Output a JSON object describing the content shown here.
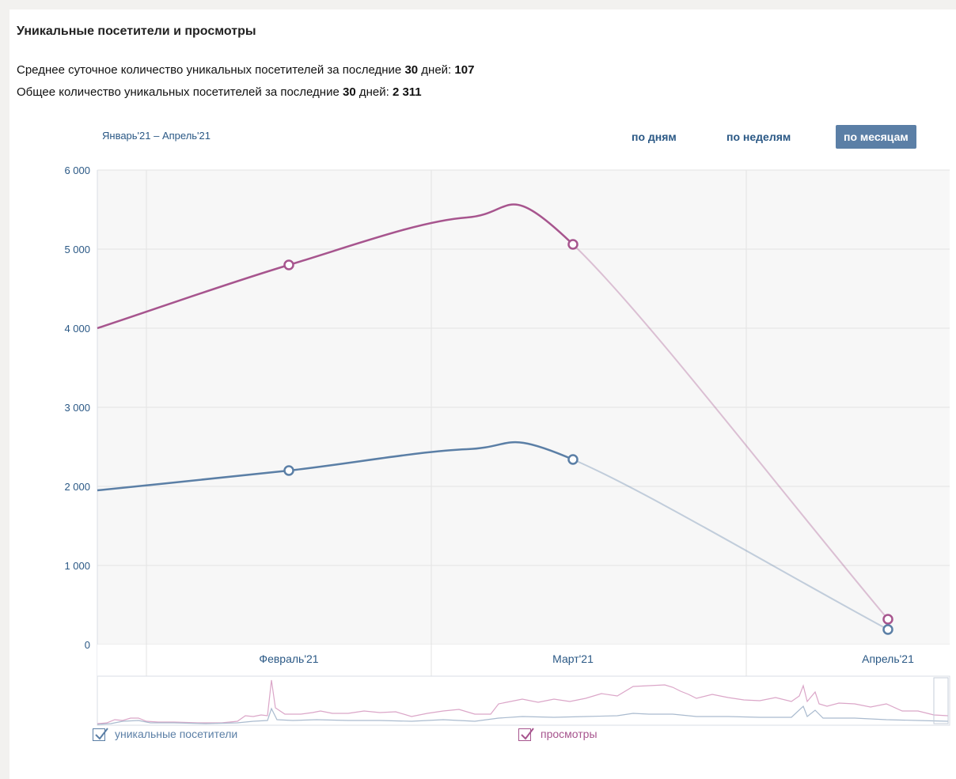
{
  "header": {
    "title": "Уникальные посетители и просмотры",
    "avg_prefix": "Среднее суточное количество уникальных посетителей за последние ",
    "avg_days": "30",
    "avg_mid": " дней: ",
    "avg_value": "107",
    "total_prefix": "Общее количество уникальных посетителей за последние ",
    "total_days": "30",
    "total_mid": " дней: ",
    "total_value": "2 311"
  },
  "period": {
    "range_label": "Январь'21 – Апрель'21",
    "buttons": [
      "по дням",
      "по неделям",
      "по месяцам"
    ],
    "active": "по месяцам"
  },
  "legend": {
    "visitors": "уникальные посетители",
    "views": "просмотры"
  },
  "colors": {
    "visitors": "#5b7fa6",
    "views": "#a7558e",
    "active_button": "#5b7fa6",
    "axis_text": "#2a5885"
  },
  "chart_data": {
    "type": "line",
    "title": "",
    "xlabel": "",
    "ylabel": "",
    "ylim": [
      0,
      6000
    ],
    "yticks": [
      0,
      1000,
      2000,
      3000,
      4000,
      5000,
      6000
    ],
    "ytick_labels": [
      "0",
      "1 000",
      "2 000",
      "3 000",
      "4 000",
      "5 000",
      "6 000"
    ],
    "categories": [
      "Январь'21",
      "Февраль'21",
      "Март'21",
      "Апрель'21"
    ],
    "x_tick_labels": [
      "Февраль'21",
      "Март'21",
      "Апрель'21"
    ],
    "grid": true,
    "series": [
      {
        "name": "просмотры",
        "color": "#a7558e",
        "values": [
          4000,
          4800,
          5060,
          320
        ]
      },
      {
        "name": "уникальные посетители",
        "color": "#5b7fa6",
        "values": [
          1950,
          2200,
          2340,
          190
        ]
      }
    ]
  }
}
